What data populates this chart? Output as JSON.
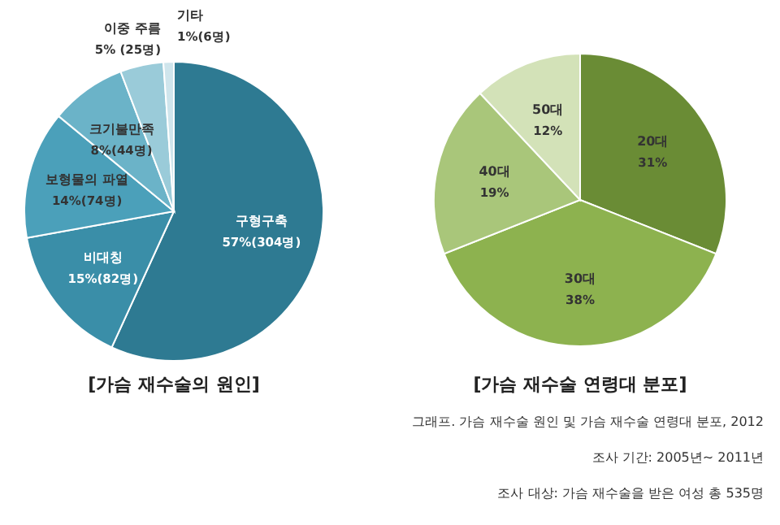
{
  "chart_data": [
    {
      "type": "pie",
      "title": "[가슴 재수술의 원인]",
      "categories": [
        "구형구축",
        "비대칭",
        "보형물의 파열",
        "크기불만족",
        "이중 주름",
        "기타"
      ],
      "values": [
        304,
        82,
        74,
        44,
        25,
        6
      ],
      "value_labels": [
        "57%(304명)",
        "15%(82명)",
        "14%(74명)",
        "8%(44명)",
        "5% (25명)",
        "1%(6명)"
      ],
      "colors": [
        "#2e7a92",
        "#3a8ea8",
        "#4ba0ba",
        "#6bb3c8",
        "#9acbd9",
        "#cfe5ec"
      ]
    },
    {
      "type": "pie",
      "title": "[가슴 재수술 연령대 분포]",
      "categories": [
        "20대",
        "30대",
        "40대",
        "50대"
      ],
      "values": [
        31,
        38,
        19,
        12
      ],
      "value_labels": [
        "31%",
        "38%",
        "19%",
        "12%"
      ],
      "colors": [
        "#6a8c35",
        "#8db24f",
        "#a9c67a",
        "#d3e2b8"
      ],
      "annotations": [
        "그래프. 가슴 재수술 원인 및 가슴 재수술 연령대 분포, 2012",
        "조사 기간: 2005년~ 2011년",
        "조사 대상: 가슴 재수술을 받은 여성 총 535명"
      ]
    }
  ]
}
